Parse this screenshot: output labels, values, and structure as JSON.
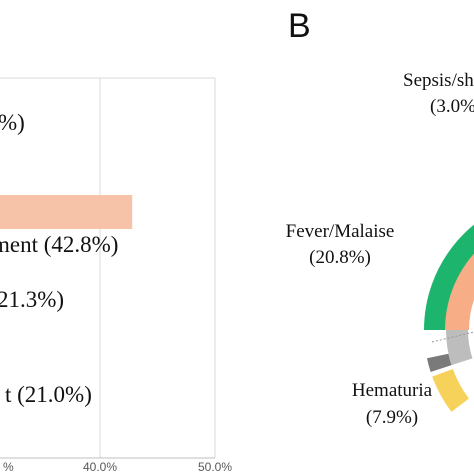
{
  "chart_data": [
    {
      "type": "bar",
      "orientation": "horizontal",
      "xlim": [
        0,
        50
      ],
      "x_ticks": [
        "40.0%",
        "50.0%"
      ],
      "x_tick_partial_left": "%",
      "x_tick_values": [
        40,
        50
      ],
      "bars": [
        {
          "value": 42.8,
          "color": "#f7c3a8"
        }
      ],
      "labels": [
        {
          "text": "%)",
          "value": null
        },
        {
          "text": "ment (42.8%)",
          "value": 42.8
        },
        {
          "text": "21.3%)",
          "value": 21.3
        },
        {
          "text": "t (21.0%)",
          "value": 21.0
        }
      ],
      "grid": true
    },
    {
      "type": "pie",
      "style": "donut",
      "panel_label": "B",
      "annotations": [
        {
          "line1": "Sepsis/sh",
          "line2": "(3.0%)",
          "value": 3.0
        },
        {
          "line1": "Fever/Malaise",
          "line2": "(20.8%)",
          "value": 20.8
        },
        {
          "line1": "Hematuria",
          "line2": "(7.9%)",
          "value": 7.9
        }
      ],
      "colors": {
        "outer_green": "#1db56e",
        "inner_peach": "#f7ad85",
        "gray_dark": "#7a7a7a",
        "gray_light": "#bdbdbd",
        "yellow": "#f7d25a"
      }
    }
  ]
}
